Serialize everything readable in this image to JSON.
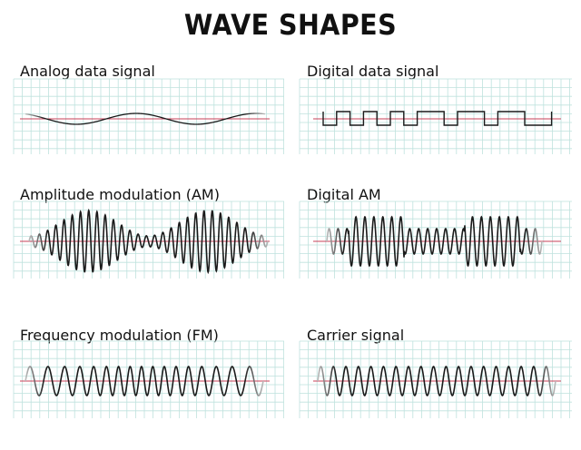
{
  "title": "WAVE SHAPES",
  "colors": {
    "grid": "#bfe2de",
    "axis": "#c8405a",
    "wave": "#1a1a1a"
  },
  "panels": [
    {
      "label": "Analog data signal",
      "wave": "analog-sine"
    },
    {
      "label": "Digital data signal",
      "wave": "square",
      "bits": [
        0,
        1,
        0,
        1,
        0,
        1,
        0,
        1,
        1,
        0,
        1,
        1,
        0,
        1,
        1,
        0,
        0
      ]
    },
    {
      "label": "Amplitude modulation (AM)",
      "wave": "am"
    },
    {
      "label": "Digital AM",
      "wave": "digital-am"
    },
    {
      "label": "Frequency modulation (FM)",
      "wave": "fm"
    },
    {
      "label": "Carrier signal",
      "wave": "carrier"
    }
  ]
}
